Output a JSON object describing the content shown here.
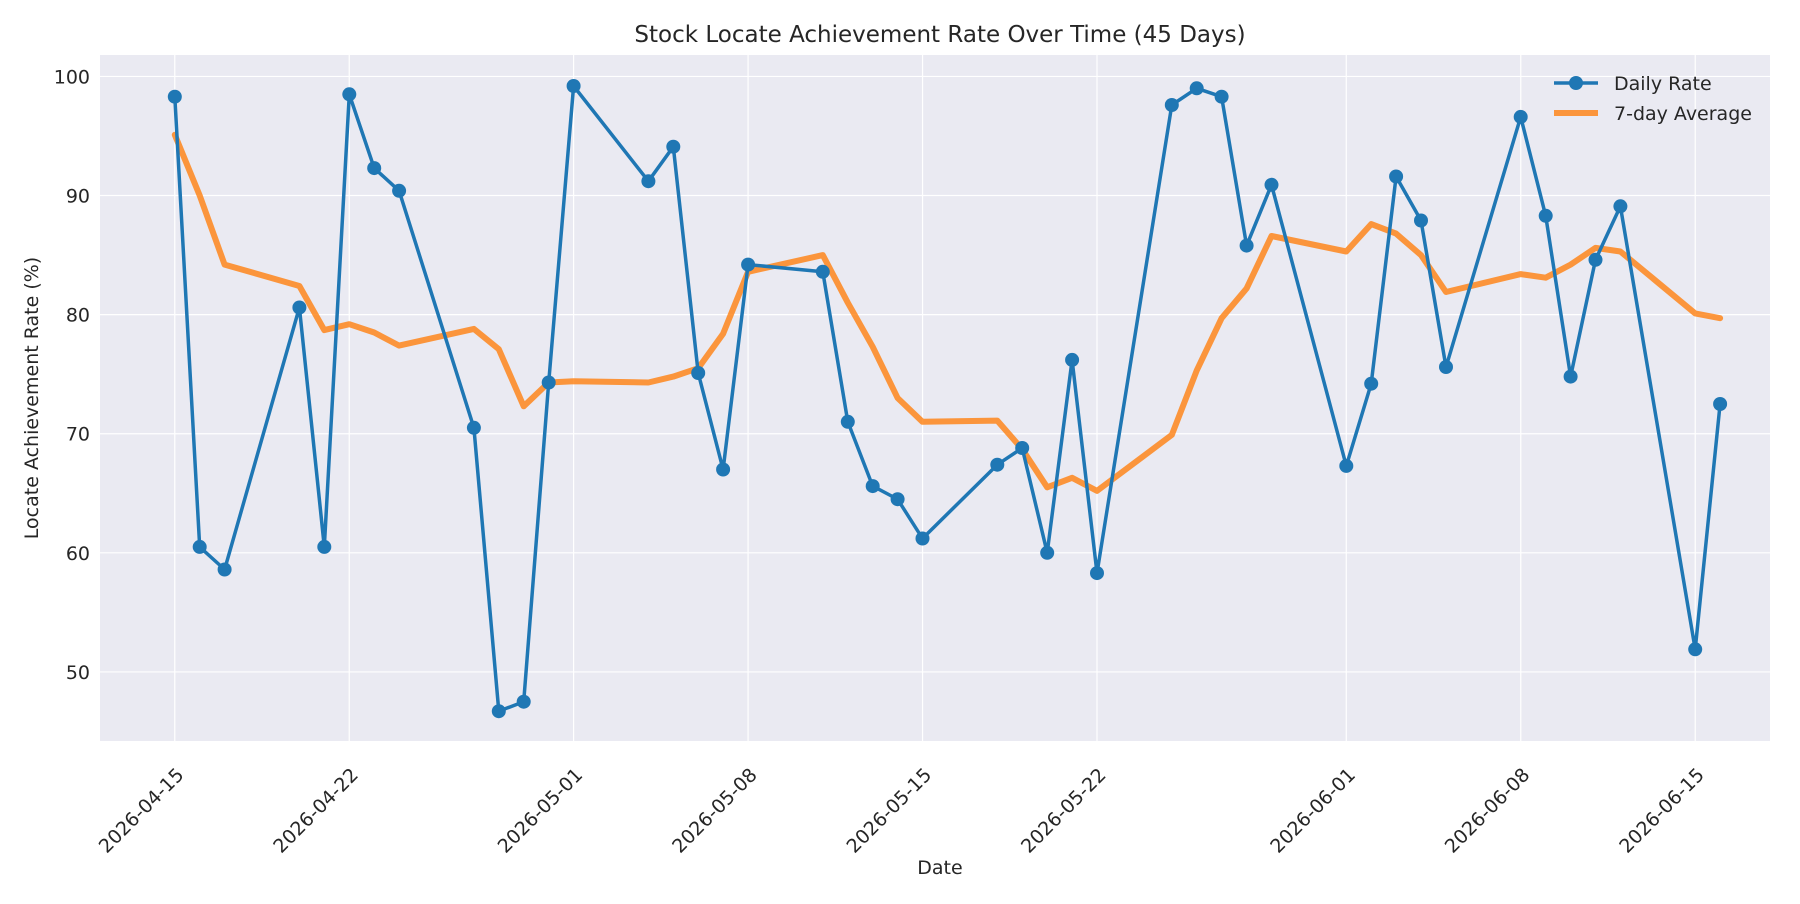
{
  "chart_data": {
    "type": "line",
    "title": "Stock Locate Achievement Rate Over Time (45 Days)",
    "xlabel": "Date",
    "ylabel": "Locate Achievement Rate (%)",
    "xlim": [
      "2026-04-12",
      "2026-06-18"
    ],
    "ylim": [
      44.2,
      101.8
    ],
    "x_ticks": [
      "2026-04-15",
      "2026-04-22",
      "2026-05-01",
      "2026-05-08",
      "2026-05-15",
      "2026-05-22",
      "2026-06-01",
      "2026-06-08",
      "2026-06-15"
    ],
    "y_ticks": [
      50,
      60,
      70,
      80,
      90,
      100
    ],
    "grid": true,
    "legend_position": "top-right",
    "colors": {
      "daily": "#1f77b4",
      "average": "#ff7f0e",
      "plot_bg": "#eaeaf2",
      "grid": "#ffffff"
    },
    "x": [
      "2026-04-15",
      "2026-04-16",
      "2026-04-17",
      "2026-04-20",
      "2026-04-21",
      "2026-04-22",
      "2026-04-23",
      "2026-04-24",
      "2026-04-27",
      "2026-04-28",
      "2026-04-29",
      "2026-04-30",
      "2026-05-01",
      "2026-05-04",
      "2026-05-05",
      "2026-05-06",
      "2026-05-07",
      "2026-05-08",
      "2026-05-11",
      "2026-05-12",
      "2026-05-13",
      "2026-05-14",
      "2026-05-15",
      "2026-05-18",
      "2026-05-19",
      "2026-05-20",
      "2026-05-21",
      "2026-05-22",
      "2026-05-25",
      "2026-05-26",
      "2026-05-27",
      "2026-05-28",
      "2026-05-29",
      "2026-06-01",
      "2026-06-02",
      "2026-06-03",
      "2026-06-04",
      "2026-06-05",
      "2026-06-08",
      "2026-06-09",
      "2026-06-10",
      "2026-06-11",
      "2026-06-12",
      "2026-06-15",
      "2026-06-16"
    ],
    "series": [
      {
        "name": "Daily Rate",
        "style": "line-with-markers",
        "values": [
          98.3,
          60.5,
          58.6,
          80.6,
          60.5,
          98.5,
          92.3,
          90.4,
          70.5,
          46.7,
          47.5,
          74.3,
          99.2,
          91.2,
          94.1,
          75.1,
          67.0,
          84.2,
          83.6,
          71.0,
          65.6,
          64.5,
          61.2,
          67.4,
          68.8,
          60.0,
          76.2,
          58.3,
          97.6,
          99.0,
          98.3,
          85.8,
          90.9,
          67.3,
          74.2,
          91.6,
          87.9,
          75.6,
          96.6,
          88.3,
          74.8,
          84.6,
          89.1,
          51.9,
          72.5
        ]
      },
      {
        "name": "7-day Average",
        "style": "line",
        "values": [
          95.1,
          90.0,
          84.2,
          82.4,
          78.7,
          79.2,
          78.5,
          77.4,
          78.8,
          77.1,
          72.3,
          74.3,
          74.4,
          74.3,
          74.8,
          75.5,
          78.4,
          83.6,
          85.0,
          81.0,
          77.3,
          73.0,
          71.0,
          71.1,
          68.7,
          65.5,
          66.3,
          65.2,
          69.9,
          75.3,
          79.7,
          82.2,
          86.6,
          85.3,
          87.6,
          86.8,
          85.0,
          81.9,
          83.4,
          83.1,
          84.2,
          85.6,
          85.3,
          80.1,
          79.7
        ]
      }
    ]
  }
}
